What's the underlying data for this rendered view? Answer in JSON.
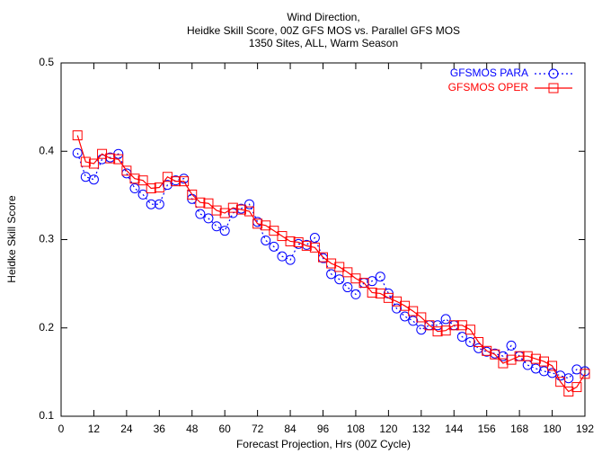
{
  "chart_data": {
    "type": "line",
    "title": [
      "Wind Direction,",
      "Heidke Skill Score, 00Z GFS MOS vs. Parallel GFS MOS",
      "1350 Sites, ALL, Warm Season"
    ],
    "x_label": "Forecast Projection, Hrs (00Z Cycle)",
    "y_label": "Heidke Skill Score",
    "x": [
      6,
      9,
      12,
      15,
      18,
      21,
      24,
      27,
      30,
      33,
      36,
      39,
      42,
      45,
      48,
      51,
      54,
      57,
      60,
      63,
      66,
      69,
      72,
      75,
      78,
      81,
      84,
      87,
      90,
      93,
      96,
      99,
      102,
      105,
      108,
      111,
      114,
      117,
      120,
      123,
      126,
      129,
      132,
      135,
      138,
      141,
      144,
      147,
      150,
      153,
      156,
      159,
      162,
      165,
      168,
      171,
      174,
      177,
      180,
      183,
      186,
      189,
      192
    ],
    "series": [
      {
        "name": "GFSMOS PARA",
        "color": "#0000ff",
        "marker": "circle",
        "dash": "dotted",
        "values": [
          0.398,
          0.371,
          0.368,
          0.391,
          0.393,
          0.397,
          0.375,
          0.358,
          0.351,
          0.34,
          0.34,
          0.362,
          0.367,
          0.369,
          0.346,
          0.329,
          0.324,
          0.315,
          0.31,
          0.33,
          0.335,
          0.34,
          0.32,
          0.299,
          0.292,
          0.281,
          0.277,
          0.295,
          0.294,
          0.302,
          0.279,
          0.261,
          0.255,
          0.246,
          0.238,
          0.251,
          0.253,
          0.258,
          0.239,
          0.222,
          0.213,
          0.208,
          0.198,
          0.203,
          0.203,
          0.21,
          0.203,
          0.19,
          0.184,
          0.177,
          0.173,
          0.171,
          0.168,
          0.18,
          0.168,
          0.158,
          0.154,
          0.151,
          0.149,
          0.146,
          0.143,
          0.153,
          0.151
        ]
      },
      {
        "name": "GFSMOS OPER",
        "color": "#ff0000",
        "marker": "square",
        "dash": "solid",
        "values": [
          0.418,
          0.388,
          0.386,
          0.397,
          0.392,
          0.391,
          0.378,
          0.369,
          0.367,
          0.358,
          0.359,
          0.371,
          0.366,
          0.366,
          0.351,
          0.342,
          0.341,
          0.333,
          0.33,
          0.336,
          0.334,
          0.332,
          0.318,
          0.316,
          0.31,
          0.304,
          0.298,
          0.297,
          0.293,
          0.291,
          0.28,
          0.273,
          0.269,
          0.263,
          0.256,
          0.251,
          0.24,
          0.239,
          0.234,
          0.23,
          0.225,
          0.219,
          0.212,
          0.203,
          0.196,
          0.197,
          0.203,
          0.203,
          0.198,
          0.184,
          0.174,
          0.17,
          0.16,
          0.164,
          0.168,
          0.168,
          0.165,
          0.162,
          0.157,
          0.139,
          0.128,
          0.133,
          0.148
        ]
      }
    ],
    "xlim": [
      0,
      192
    ],
    "xticks": [
      0,
      12,
      24,
      36,
      48,
      60,
      72,
      84,
      96,
      108,
      120,
      132,
      144,
      156,
      168,
      180,
      192
    ],
    "ylim": [
      0.1,
      0.5
    ],
    "yticks": [
      0.1,
      0.2,
      0.3,
      0.4,
      0.5
    ],
    "grid": false,
    "legend": "top-right"
  }
}
